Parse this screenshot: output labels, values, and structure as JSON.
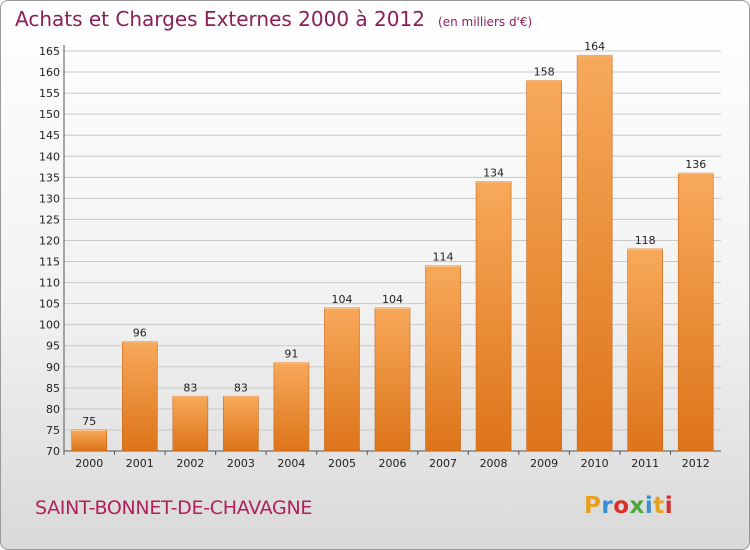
{
  "header": {
    "title": "Achats et Charges Externes 2000 à 2012",
    "unit": "(en milliers d'€)"
  },
  "commune": "SAINT-BONNET-DE-CHAVAGNE",
  "logo": {
    "letters": [
      "P",
      "r",
      "o",
      "x",
      "i",
      "t",
      "i"
    ],
    "colors": [
      "#e8a020",
      "#3a8fd0",
      "#d9302c",
      "#4aa83a",
      "#3a8fd0",
      "#e8a020",
      "#d9302c"
    ]
  },
  "colors": {
    "bar_light": "#f7a95a",
    "bar_dark": "#dd7419",
    "grid": "#c8c8c8",
    "title": "#8b1f57"
  },
  "chart_data": {
    "type": "bar",
    "title": "Achats et Charges Externes 2000 à 2012",
    "subtitle": "(en milliers d'€)",
    "xlabel": "",
    "ylabel": "",
    "categories": [
      "2000",
      "2001",
      "2002",
      "2003",
      "2004",
      "2005",
      "2006",
      "2007",
      "2008",
      "2009",
      "2010",
      "2011",
      "2012"
    ],
    "values": [
      75,
      96,
      83,
      83,
      91,
      104,
      104,
      114,
      134,
      158,
      164,
      118,
      136
    ],
    "ylim": [
      70,
      165
    ],
    "yticks": [
      70,
      75,
      80,
      85,
      90,
      95,
      100,
      105,
      110,
      115,
      120,
      125,
      130,
      135,
      140,
      145,
      150,
      155,
      160,
      165
    ],
    "grid": true,
    "legend": "none"
  }
}
